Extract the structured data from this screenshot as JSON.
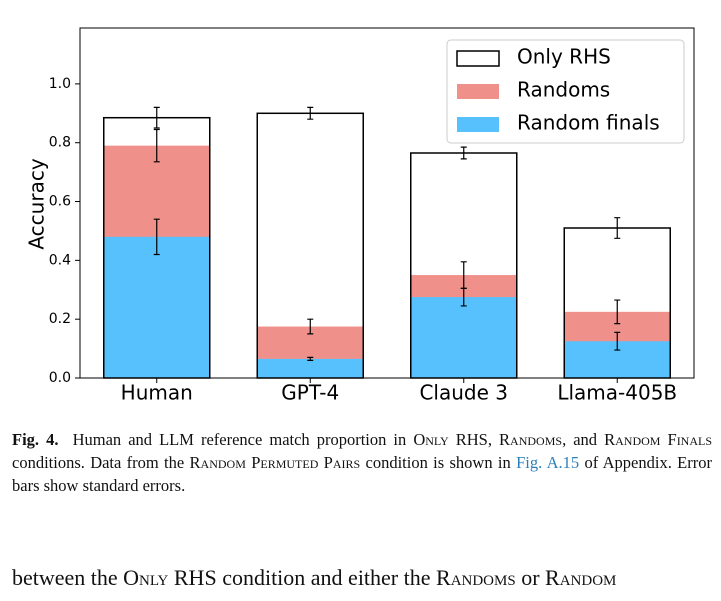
{
  "chart_data": {
    "type": "overlaid_bar",
    "ylabel": "Accuracy",
    "categories": [
      "Human",
      "GPT-4",
      "Claude 3",
      "Llama-405B"
    ],
    "series": [
      {
        "name": "Only RHS",
        "color": "#ffffff",
        "values": [
          0.885,
          0.9,
          0.765,
          0.51
        ],
        "errors": [
          0.035,
          0.02,
          0.02,
          0.035
        ]
      },
      {
        "name": "Randoms",
        "color": "#f0908a",
        "values": [
          0.79,
          0.175,
          0.35,
          0.225
        ],
        "errors": [
          0.055,
          0.025,
          0.045,
          0.04
        ]
      },
      {
        "name": "Random finals",
        "color": "#56c1fc",
        "values": [
          0.48,
          0.065,
          0.275,
          0.125
        ],
        "errors": [
          0.06,
          0.005,
          0.03,
          0.03
        ]
      }
    ],
    "ylim": [
      0,
      1.19
    ],
    "yticks": [
      {
        "value": 0,
        "label": "0.0"
      },
      0.2,
      0.4,
      0.6,
      0.8,
      {
        "value": 1,
        "label": "1.0"
      }
    ],
    "legend": "upper right"
  },
  "caption": {
    "label": "Fig. 4.",
    "parts": [
      "Human and LLM reference match proportion in ",
      "Only RHS",
      ", ",
      "Randoms",
      ", and ",
      "Random Finals",
      " conditions. Data from the ",
      "Random Permuted Pairs",
      " condition is shown in ",
      "Fig. A.15",
      " of Appendix. Error bars show standard errors."
    ]
  },
  "body": {
    "parts": [
      "between the ",
      "Only RHS",
      " condition and either the ",
      "Randoms",
      " or ",
      "Random"
    ]
  }
}
